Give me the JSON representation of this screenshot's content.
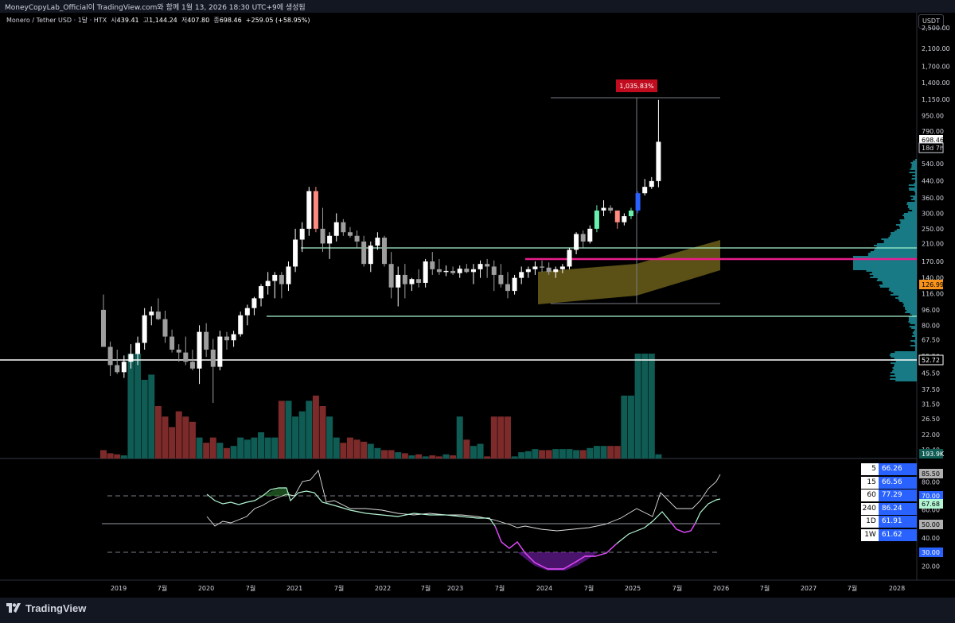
{
  "header": {
    "snapshot_line": "MoneyCopyLab_Official이 TradingView.com와 함께 1월 13, 2026 18:30 UTC+9에 생성됨"
  },
  "symbol": {
    "name": "Monero / Tether USD · 1달 · HTX",
    "open_label": "시",
    "open": "439.41",
    "high_label": "고",
    "high": "1,144.24",
    "low_label": "저",
    "low": "407.80",
    "close_label": "종",
    "close": "698.46",
    "change": "+259.05 (+58.95%)"
  },
  "currency_button": "USDT",
  "footer": {
    "brand": "TradingView"
  },
  "colors": {
    "up": "#ffffff",
    "down": "#9e9e9e",
    "bull_vol": "#0f5c54",
    "bear_vol": "#7c2a2a",
    "rsi": "#b2f5d3",
    "accent_red": "#c00c1e",
    "orange": "#f7931a"
  },
  "chart_data": {
    "type": "candlestick",
    "x_axis_labels": [
      "2019",
      "7월",
      "2020",
      "7월",
      "2021",
      "7월",
      "2022",
      "7월",
      "2023",
      "7월",
      "2024",
      "7월",
      "2025",
      "7월",
      "2026",
      "7월",
      "2027",
      "7월",
      "2028"
    ],
    "y_axis_scale": "log",
    "price_ticks": [
      "2,100.00",
      "1,700.00",
      "1,400.00",
      "1,150.00",
      "950.00",
      "790.00",
      "540.00",
      "440.00",
      "360.00",
      "300.00",
      "250.00",
      "210.00",
      "170.00",
      "140.00",
      "116.00",
      "96.00",
      "80.00",
      "67.50",
      "55.50",
      "45.50",
      "37.50",
      "31.50",
      "26.50",
      "22.00",
      "18.40"
    ],
    "top_tick_partial": "2,500.00",
    "current_price_tag": "698.46",
    "countdown_tag": "18d 7h",
    "orange_tag": "126.99",
    "white_line_tag": "52.72",
    "volume_tag": "193.9K",
    "measure_label": "1,035.83%",
    "rsi_ticks": [
      "80.00",
      "60.00",
      "40.00",
      "20.00"
    ],
    "rsi_level_tags": [
      "85.50",
      "70.00",
      "67.68",
      "50.00",
      "30.00"
    ],
    "rsi_by_timeframe": [
      {
        "tf": "5",
        "value": "66.26"
      },
      {
        "tf": "15",
        "value": "66.56"
      },
      {
        "tf": "60",
        "value": "77.29"
      },
      {
        "tf": "240",
        "value": "86.24"
      },
      {
        "tf": "1D",
        "value": "61.91"
      },
      {
        "tf": "1W",
        "value": "61.62"
      }
    ],
    "horizontal_levels": [
      193,
      86,
      52.72
    ],
    "candles": [
      {
        "o": 96,
        "h": 115,
        "l": 70,
        "c": 62,
        "v": 8
      },
      {
        "o": 62,
        "h": 66,
        "l": 44,
        "c": 50,
        "v": 5
      },
      {
        "o": 50,
        "h": 60,
        "l": 45,
        "c": 46,
        "v": 4
      },
      {
        "o": 46,
        "h": 56,
        "l": 43,
        "c": 52,
        "v": 3
      },
      {
        "o": 52,
        "h": 64,
        "l": 48,
        "c": 57,
        "v": 100
      },
      {
        "o": 57,
        "h": 70,
        "l": 50,
        "c": 65,
        "v": 100
      },
      {
        "o": 65,
        "h": 98,
        "l": 60,
        "c": 90,
        "v": 75
      },
      {
        "o": 90,
        "h": 100,
        "l": 80,
        "c": 94,
        "v": 80
      },
      {
        "o": 94,
        "h": 110,
        "l": 85,
        "c": 86,
        "v": 50
      },
      {
        "o": 86,
        "h": 95,
        "l": 65,
        "c": 70,
        "v": 40
      },
      {
        "o": 70,
        "h": 76,
        "l": 58,
        "c": 60,
        "v": 30
      },
      {
        "o": 60,
        "h": 64,
        "l": 52,
        "c": 58,
        "v": 45
      },
      {
        "o": 58,
        "h": 70,
        "l": 50,
        "c": 52,
        "v": 40
      },
      {
        "o": 52,
        "h": 60,
        "l": 47,
        "c": 48,
        "v": 35
      },
      {
        "o": 48,
        "h": 80,
        "l": 40,
        "c": 74,
        "v": 20
      },
      {
        "o": 74,
        "h": 82,
        "l": 55,
        "c": 60,
        "v": 15
      },
      {
        "o": 60,
        "h": 68,
        "l": 32,
        "c": 49,
        "v": 20
      },
      {
        "o": 49,
        "h": 75,
        "l": 47,
        "c": 70,
        "v": 15
      },
      {
        "o": 70,
        "h": 74,
        "l": 60,
        "c": 67,
        "v": 10
      },
      {
        "o": 67,
        "h": 75,
        "l": 62,
        "c": 72,
        "v": 12
      },
      {
        "o": 72,
        "h": 94,
        "l": 70,
        "c": 90,
        "v": 20
      },
      {
        "o": 90,
        "h": 102,
        "l": 80,
        "c": 98,
        "v": 18
      },
      {
        "o": 98,
        "h": 112,
        "l": 90,
        "c": 110,
        "v": 20
      },
      {
        "o": 110,
        "h": 130,
        "l": 100,
        "c": 127,
        "v": 25
      },
      {
        "o": 127,
        "h": 150,
        "l": 115,
        "c": 135,
        "v": 20
      },
      {
        "o": 135,
        "h": 150,
        "l": 110,
        "c": 145,
        "v": 20
      },
      {
        "o": 145,
        "h": 150,
        "l": 110,
        "c": 130,
        "v": 55
      },
      {
        "o": 130,
        "h": 170,
        "l": 120,
        "c": 160,
        "v": 55
      },
      {
        "o": 160,
        "h": 250,
        "l": 150,
        "c": 220,
        "v": 40
      },
      {
        "o": 220,
        "h": 270,
        "l": 190,
        "c": 250,
        "v": 45
      },
      {
        "o": 250,
        "h": 410,
        "l": 230,
        "c": 390,
        "v": 55
      },
      {
        "o": 390,
        "h": 410,
        "l": 240,
        "c": 250,
        "v": 60
      },
      {
        "o": 250,
        "h": 320,
        "l": 190,
        "c": 210,
        "v": 50
      },
      {
        "o": 210,
        "h": 240,
        "l": 175,
        "c": 230,
        "v": 40
      },
      {
        "o": 230,
        "h": 300,
        "l": 215,
        "c": 270,
        "v": 20
      },
      {
        "o": 270,
        "h": 280,
        "l": 230,
        "c": 240,
        "v": 15
      },
      {
        "o": 240,
        "h": 255,
        "l": 225,
        "c": 230,
        "v": 20
      },
      {
        "o": 230,
        "h": 245,
        "l": 200,
        "c": 215,
        "v": 18
      },
      {
        "o": 215,
        "h": 230,
        "l": 160,
        "c": 165,
        "v": 16
      },
      {
        "o": 165,
        "h": 215,
        "l": 150,
        "c": 205,
        "v": 14
      },
      {
        "o": 205,
        "h": 240,
        "l": 195,
        "c": 225,
        "v": 10
      },
      {
        "o": 225,
        "h": 230,
        "l": 160,
        "c": 165,
        "v": 8
      },
      {
        "o": 165,
        "h": 190,
        "l": 110,
        "c": 125,
        "v": 8
      },
      {
        "o": 125,
        "h": 160,
        "l": 100,
        "c": 145,
        "v": 6
      },
      {
        "o": 145,
        "h": 165,
        "l": 110,
        "c": 130,
        "v": 5
      },
      {
        "o": 130,
        "h": 140,
        "l": 120,
        "c": 138,
        "v": 3
      },
      {
        "o": 138,
        "h": 155,
        "l": 125,
        "c": 132,
        "v": 4
      },
      {
        "o": 132,
        "h": 175,
        "l": 125,
        "c": 170,
        "v": 2
      },
      {
        "o": 170,
        "h": 190,
        "l": 145,
        "c": 155,
        "v": 3
      },
      {
        "o": 155,
        "h": 175,
        "l": 145,
        "c": 150,
        "v": 2
      },
      {
        "o": 150,
        "h": 162,
        "l": 143,
        "c": 152,
        "v": 4
      },
      {
        "o": 152,
        "h": 160,
        "l": 145,
        "c": 148,
        "v": 3
      },
      {
        "o": 148,
        "h": 162,
        "l": 140,
        "c": 156,
        "v": 40
      },
      {
        "o": 156,
        "h": 165,
        "l": 148,
        "c": 150,
        "v": 18
      },
      {
        "o": 150,
        "h": 165,
        "l": 130,
        "c": 155,
        "v": 12
      },
      {
        "o": 155,
        "h": 172,
        "l": 140,
        "c": 165,
        "v": 14
      },
      {
        "o": 165,
        "h": 175,
        "l": 140,
        "c": 160,
        "v": 2
      },
      {
        "o": 160,
        "h": 172,
        "l": 120,
        "c": 145,
        "v": 40
      },
      {
        "o": 145,
        "h": 165,
        "l": 125,
        "c": 130,
        "v": 40
      },
      {
        "o": 130,
        "h": 150,
        "l": 110,
        "c": 120,
        "v": 40
      },
      {
        "o": 120,
        "h": 145,
        "l": 115,
        "c": 140,
        "v": 2
      },
      {
        "o": 140,
        "h": 160,
        "l": 130,
        "c": 150,
        "v": 6
      },
      {
        "o": 150,
        "h": 160,
        "l": 140,
        "c": 155,
        "v": 7
      },
      {
        "o": 155,
        "h": 170,
        "l": 145,
        "c": 160,
        "v": 9
      },
      {
        "o": 160,
        "h": 172,
        "l": 150,
        "c": 158,
        "v": 8
      },
      {
        "o": 158,
        "h": 168,
        "l": 145,
        "c": 150,
        "v": 8
      },
      {
        "o": 150,
        "h": 160,
        "l": 140,
        "c": 155,
        "v": 9
      },
      {
        "o": 155,
        "h": 165,
        "l": 148,
        "c": 160,
        "v": 9
      },
      {
        "o": 160,
        "h": 200,
        "l": 155,
        "c": 195,
        "v": 9
      },
      {
        "o": 195,
        "h": 240,
        "l": 185,
        "c": 235,
        "v": 8
      },
      {
        "o": 235,
        "h": 245,
        "l": 200,
        "c": 215,
        "v": 8
      },
      {
        "o": 215,
        "h": 260,
        "l": 210,
        "c": 250,
        "v": 10
      },
      {
        "o": 250,
        "h": 330,
        "l": 240,
        "c": 310,
        "v": 12
      },
      {
        "o": 310,
        "h": 350,
        "l": 290,
        "c": 320,
        "v": 12
      },
      {
        "o": 320,
        "h": 330,
        "l": 300,
        "c": 310,
        "v": 12
      },
      {
        "o": 310,
        "h": 310,
        "l": 250,
        "c": 270,
        "v": 12
      },
      {
        "o": 270,
        "h": 300,
        "l": 260,
        "c": 290,
        "v": 60
      },
      {
        "o": 290,
        "h": 320,
        "l": 280,
        "c": 310,
        "v": 60
      },
      {
        "o": 310,
        "h": 390,
        "l": 300,
        "c": 380,
        "v": 100
      },
      {
        "o": 380,
        "h": 450,
        "l": 370,
        "c": 410,
        "v": 100
      },
      {
        "o": 410,
        "h": 460,
        "l": 400,
        "c": 439,
        "v": 100
      },
      {
        "o": 439,
        "h": 1144,
        "l": 408,
        "c": 698,
        "v": 4
      }
    ]
  }
}
